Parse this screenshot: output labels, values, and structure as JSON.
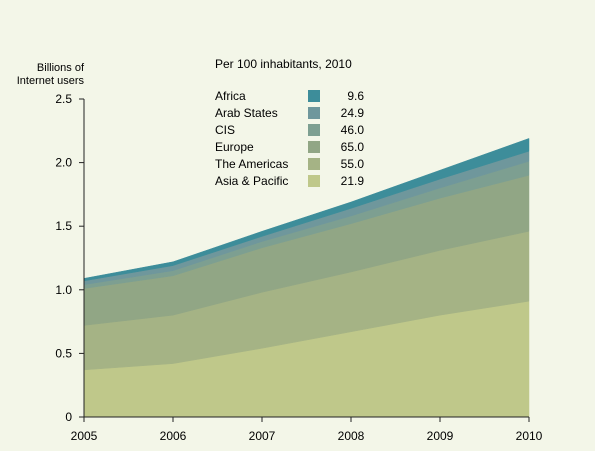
{
  "chart_data": {
    "type": "area",
    "stacked": true,
    "ylabel": "Billions of Internet users",
    "xlabel": "",
    "x": [
      "2005",
      "2006",
      "2007",
      "2008",
      "2009",
      "2010"
    ],
    "ylim": [
      0,
      2.5
    ],
    "yticks": [
      "0",
      "0.5",
      "1.0",
      "1.5",
      "2.0",
      "2.5"
    ],
    "grid": false,
    "legend_title": "Per 100 inhabitants, 2010",
    "legend_position": "top-left",
    "series": [
      {
        "name": "Asia & Pacific",
        "per100": "21.9",
        "color": "#bfc88a",
        "values": [
          0.37,
          0.42,
          0.54,
          0.67,
          0.8,
          0.91
        ]
      },
      {
        "name": "The Americas",
        "per100": "55.0",
        "color": "#a5b385",
        "values": [
          0.35,
          0.38,
          0.44,
          0.47,
          0.51,
          0.55
        ]
      },
      {
        "name": "Europe",
        "per100": "65.0",
        "color": "#91a685",
        "values": [
          0.29,
          0.31,
          0.35,
          0.38,
          0.41,
          0.44
        ]
      },
      {
        "name": "CIS",
        "per100": "46.0",
        "color": "#7d9f91",
        "values": [
          0.03,
          0.04,
          0.05,
          0.06,
          0.08,
          0.11
        ]
      },
      {
        "name": "Arab States",
        "per100": "24.9",
        "color": "#6f979c",
        "values": [
          0.03,
          0.04,
          0.04,
          0.06,
          0.07,
          0.08
        ]
      },
      {
        "name": "Africa",
        "per100": "9.6",
        "color": "#3d8d9a",
        "values": [
          0.02,
          0.03,
          0.04,
          0.05,
          0.07,
          0.1
        ]
      }
    ]
  }
}
